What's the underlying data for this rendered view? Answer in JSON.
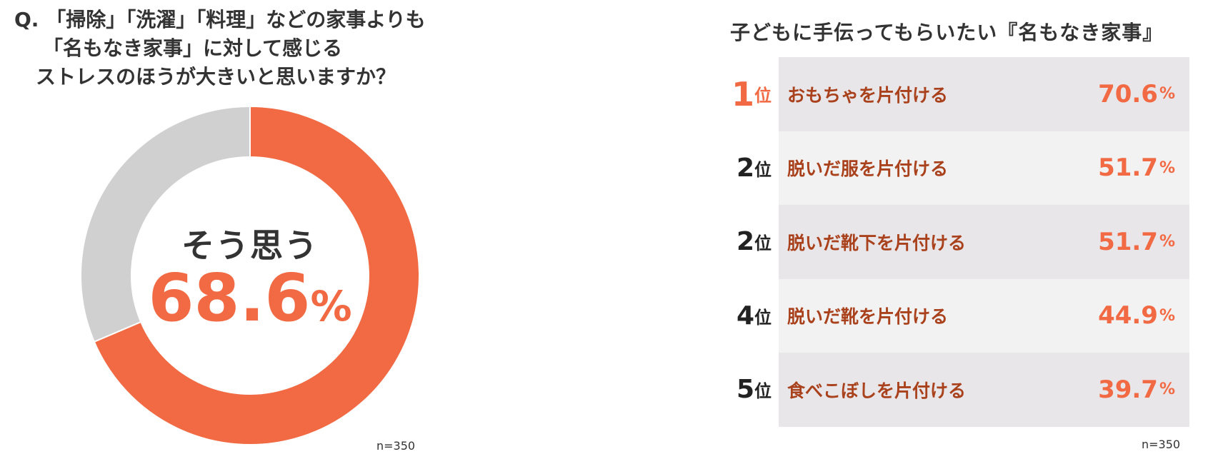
{
  "chart_data": [
    {
      "type": "pie",
      "question_lines": [
        "Q. 「掃除」「洗濯」「料理」などの家事よりも",
        "「名もなき家事」に対して感じる",
        "ストレスのほうが大きいと思いますか？"
      ],
      "slices": [
        {
          "label": "そう思う",
          "value": 68.6,
          "color": "#f26a43"
        },
        {
          "label": "",
          "value": 31.4,
          "color": "#d1d0d0"
        }
      ],
      "center_label": "そう思う",
      "center_value": "68.6",
      "center_unit": "%",
      "sample_size": "n=350"
    },
    {
      "type": "table",
      "title": "子どもに手伝ってもらいたい『名もなき家事』",
      "rank_suffix": "位",
      "value_unit": "%",
      "rows": [
        {
          "rank": "1",
          "item": "おもちゃを片付ける",
          "value": 70.6,
          "value_text": "70.6"
        },
        {
          "rank": "2",
          "item": "脱いだ服を片付ける",
          "value": 51.7,
          "value_text": "51.7"
        },
        {
          "rank": "2",
          "item": "脱いだ靴下を片付ける",
          "value": 51.7,
          "value_text": "51.7"
        },
        {
          "rank": "4",
          "item": "脱いだ靴を片付ける",
          "value": 44.9,
          "value_text": "44.9"
        },
        {
          "rank": "5",
          "item": "食べこぼしを片付ける",
          "value": 39.7,
          "value_text": "39.7"
        }
      ],
      "sample_size": "n=350"
    }
  ]
}
